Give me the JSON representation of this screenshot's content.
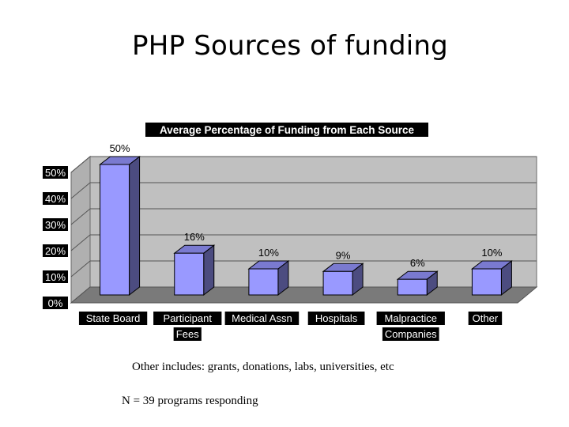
{
  "slide": {
    "title": "PHP Sources of funding",
    "note_other": "Other includes: grants, donations, labs, universities, etc",
    "note_n": "N = 39 programs responding"
  },
  "chart_data": {
    "type": "bar",
    "title": "Average Percentage of Funding from Each Source",
    "categories": [
      [
        "State Board"
      ],
      [
        "Participant",
        "Fees"
      ],
      [
        "Medical Assn"
      ],
      [
        "Hospitals"
      ],
      [
        "Malpractice",
        "Companies"
      ],
      [
        "Other"
      ]
    ],
    "values": [
      50,
      16,
      10,
      9,
      6,
      10
    ],
    "value_labels": [
      "50%",
      "16%",
      "10%",
      "9%",
      "6%",
      "10%"
    ],
    "y_ticks": [
      "0%",
      "10%",
      "20%",
      "30%",
      "40%",
      "50%"
    ],
    "ylim": [
      0,
      50
    ],
    "grid": true,
    "legend": "none",
    "colors": {
      "bar_front": "#9999ff",
      "bar_side": "#4c4c80",
      "bar_top": "#7a7ad0",
      "wall": "#c0c0c0",
      "floor": "#7a7a7a",
      "label_bg": "#000000",
      "label_text": "#ffffff"
    }
  }
}
